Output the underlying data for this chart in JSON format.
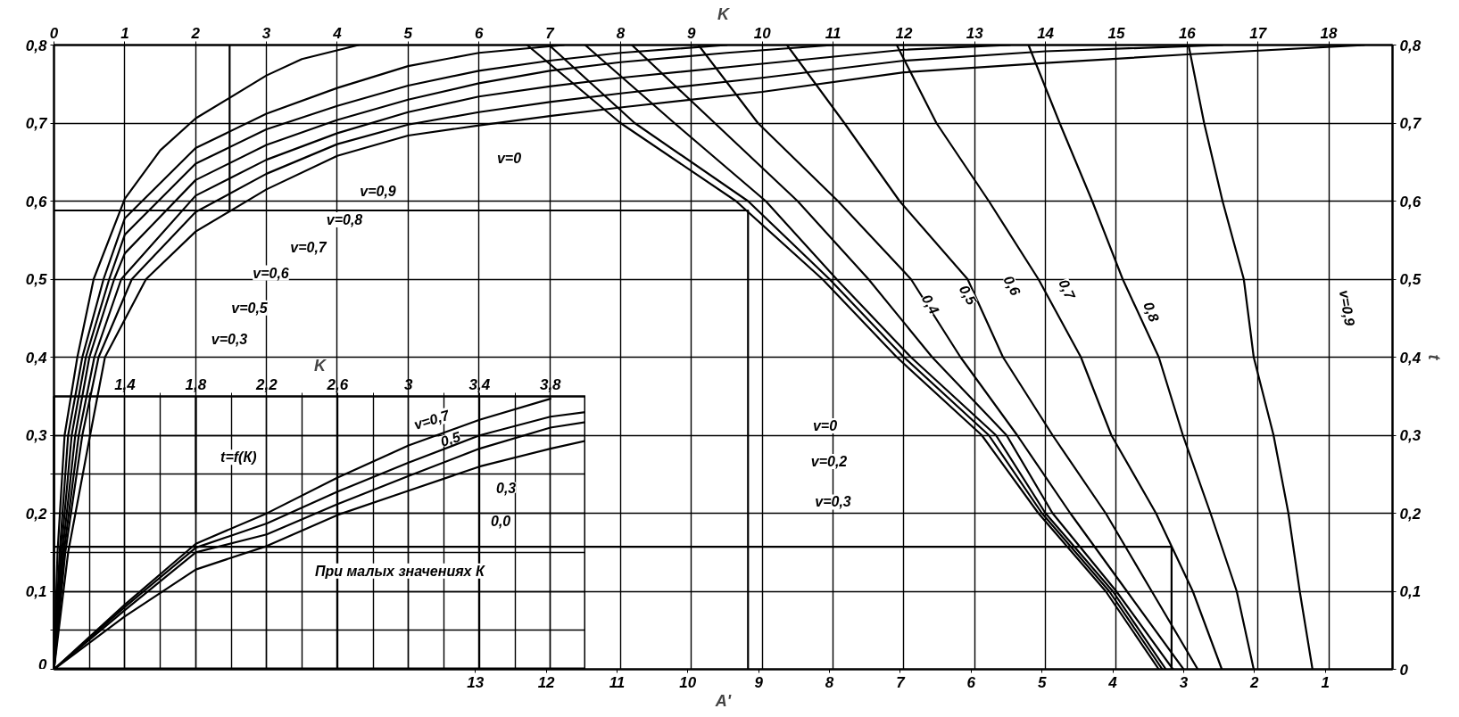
{
  "chart_data": [
    {
      "type": "line",
      "xlabel": "K",
      "x2label": "A'",
      "y2label": "t",
      "xlim": [
        0,
        18.9
      ],
      "xticks": [
        0,
        1,
        2,
        3,
        4,
        5,
        6,
        7,
        8,
        9,
        10,
        11,
        12,
        13,
        14,
        15,
        16,
        17,
        18
      ],
      "x2lim": [
        18.95,
        0.05
      ],
      "x2ticks": [
        1,
        2,
        3,
        4,
        5,
        6,
        7,
        8,
        9,
        10,
        11,
        12,
        13
      ],
      "ylim": [
        0,
        0.8
      ],
      "yticks": [
        {
          "value": 0,
          "label": null
        },
        {
          "value": 0.1,
          "label": null
        },
        {
          "value": 0.2,
          "label": null
        },
        {
          "value": 0.3,
          "label": null
        },
        {
          "value": 0.4,
          "label": "0,4"
        },
        {
          "value": 0.5,
          "label": "0,5"
        },
        {
          "value": 0.6,
          "label": "0,6"
        },
        {
          "value": 0.7,
          "label": "0,7"
        },
        {
          "value": 0.8,
          "label": "0,8"
        }
      ],
      "y2lim": [
        0,
        0.8
      ],
      "y2ticks": [
        {
          "value": 0,
          "label": "0"
        },
        {
          "value": 0.1,
          "label": "0,1"
        },
        {
          "value": 0.2,
          "label": "0,2"
        },
        {
          "value": 0.3,
          "label": "0,3"
        },
        {
          "value": 0.4,
          "label": "0,4"
        },
        {
          "value": 0.5,
          "label": "0,5"
        },
        {
          "value": 0.6,
          "label": "0,6"
        },
        {
          "value": 0.7,
          "label": "0,7"
        },
        {
          "value": 0.8,
          "label": "0,8"
        }
      ],
      "grid": true,
      "series": [
        {
          "color": "#000000",
          "x": [
            0,
            0.05,
            0.15,
            0.33,
            0.56,
            1,
            1.5,
            2,
            3,
            3.5,
            4.3
          ],
          "values": [
            0,
            0.15,
            0.3,
            0.4,
            0.5,
            0.603,
            0.665,
            0.706,
            0.761,
            0.782,
            0.8
          ]
        },
        {
          "color": "#000000",
          "x": [
            0,
            0.08,
            0.2,
            0.4,
            0.7,
            1,
            2,
            3,
            4,
            5,
            6,
            7.2
          ],
          "values": [
            0,
            0.15,
            0.3,
            0.4,
            0.5,
            0.578,
            0.668,
            0.712,
            0.745,
            0.773,
            0.79,
            0.8
          ]
        },
        {
          "color": "#000000",
          "x": [
            0,
            0.1,
            0.25,
            0.45,
            0.78,
            1,
            2,
            3,
            4,
            5,
            6,
            7,
            8,
            9.5
          ],
          "values": [
            0,
            0.15,
            0.3,
            0.4,
            0.5,
            0.557,
            0.648,
            0.692,
            0.722,
            0.748,
            0.767,
            0.78,
            0.79,
            0.8
          ]
        },
        {
          "color": "#000000",
          "x": [
            0,
            0.12,
            0.3,
            0.5,
            0.85,
            1,
            2,
            3,
            4,
            5,
            6,
            7,
            8,
            9.5,
            11
          ],
          "values": [
            0,
            0.15,
            0.3,
            0.4,
            0.5,
            0.533,
            0.627,
            0.672,
            0.704,
            0.73,
            0.751,
            0.767,
            0.778,
            0.79,
            0.8
          ]
        },
        {
          "color": "#000000",
          "x": [
            0,
            0.14,
            0.35,
            0.57,
            0.95,
            2,
            3,
            4,
            5,
            6,
            7,
            8,
            10,
            12,
            13.5
          ],
          "values": [
            0,
            0.15,
            0.3,
            0.4,
            0.5,
            0.607,
            0.653,
            0.687,
            0.714,
            0.734,
            0.747,
            0.758,
            0.776,
            0.794,
            0.8
          ]
        },
        {
          "color": "#000000",
          "x": [
            0,
            0.16,
            0.4,
            0.63,
            1.1,
            2,
            3,
            4,
            5,
            6,
            7,
            8,
            10,
            12,
            14,
            16.5
          ],
          "values": [
            0,
            0.15,
            0.3,
            0.4,
            0.5,
            0.586,
            0.635,
            0.673,
            0.698,
            0.714,
            0.727,
            0.738,
            0.758,
            0.78,
            0.792,
            0.8
          ]
        },
        {
          "color": "#000000",
          "x": [
            0,
            0.2,
            0.51,
            0.72,
            1.3,
            2,
            3,
            4,
            5,
            6,
            7,
            8,
            10,
            12,
            14,
            16,
            18.5
          ],
          "values": [
            0,
            0.15,
            0.3,
            0.4,
            0.5,
            0.561,
            0.615,
            0.658,
            0.684,
            0.697,
            0.709,
            0.72,
            0.74,
            0.765,
            0.777,
            0.788,
            0.8
          ]
        },
        {
          "color": "#000000",
          "x": [
            6.68,
            8.0,
            9.63,
            10.85,
            11.9,
            13.1,
            13.9,
            14.85,
            15.6
          ],
          "values": [
            0.8,
            0.7,
            0.6,
            0.5,
            0.4,
            0.3,
            0.2,
            0.1,
            0
          ]
        },
        {
          "color": "#000000",
          "x": [
            6.99,
            8.2,
            9.8,
            10.95,
            12.0,
            13.2,
            13.95,
            14.9,
            15.65
          ],
          "values": [
            0.8,
            0.7,
            0.6,
            0.5,
            0.4,
            0.3,
            0.2,
            0.1,
            0
          ]
        },
        {
          "color": "#000000",
          "x": [
            7.5,
            8.76,
            10.05,
            11.05,
            12.1,
            13.3,
            14.0,
            14.95,
            15.7
          ],
          "values": [
            0.8,
            0.7,
            0.6,
            0.5,
            0.4,
            0.3,
            0.2,
            0.1,
            0
          ]
        },
        {
          "color": "#000000",
          "x": [
            8.16,
            9.33,
            10.5,
            11.5,
            12.4,
            13.45,
            14.1,
            15.0,
            15.8
          ],
          "values": [
            0.8,
            0.7,
            0.6,
            0.5,
            0.4,
            0.3,
            0.2,
            0.1,
            0
          ]
        },
        {
          "color": "#000000",
          "x": [
            9.1,
            9.94,
            11.07,
            12.1,
            12.8,
            13.6,
            14.35,
            15.15,
            15.95
          ],
          "values": [
            0.8,
            0.7,
            0.6,
            0.5,
            0.4,
            0.3,
            0.2,
            0.1,
            0
          ]
        },
        {
          "color": "#000000",
          "x": [
            10.35,
            11.16,
            11.94,
            12.9,
            13.4,
            14.1,
            14.85,
            15.5,
            16.15
          ],
          "values": [
            0.8,
            0.7,
            0.6,
            0.5,
            0.4,
            0.3,
            0.2,
            0.1,
            0
          ]
        },
        {
          "color": "#000000",
          "x": [
            11.9,
            12.46,
            13.2,
            13.9,
            14.5,
            14.93,
            15.56,
            16.08,
            16.49
          ],
          "values": [
            0.8,
            0.7,
            0.6,
            0.5,
            0.4,
            0.3,
            0.2,
            0.1,
            0
          ]
        },
        {
          "color": "#000000",
          "x": [
            13.76,
            14.2,
            14.66,
            15.09,
            15.6,
            15.94,
            16.33,
            16.7,
            16.94
          ],
          "values": [
            0.8,
            0.7,
            0.6,
            0.5,
            0.4,
            0.3,
            0.2,
            0.1,
            0
          ]
        },
        {
          "color": "#000000",
          "x": [
            16.02,
            16.24,
            16.5,
            16.8,
            16.94,
            17.22,
            17.43,
            17.59,
            17.77
          ],
          "values": [
            0.8,
            0.7,
            0.6,
            0.5,
            0.4,
            0.3,
            0.2,
            0.1,
            0
          ]
        },
        {
          "color": "#000000",
          "x": [
            0,
            9.8,
            9.8
          ],
          "values": [
            0.588,
            0.588,
            0
          ]
        },
        {
          "color": "#000000",
          "x": [
            0,
            15.78,
            15.78
          ],
          "values": [
            0.157,
            0.157,
            0
          ]
        },
        {
          "color": "#000000",
          "x": [
            2.48,
            2.48
          ],
          "values": [
            0.8,
            0.588
          ]
        }
      ],
      "annotations": [
        "v=0,9",
        "v=0,8",
        "v=0,7",
        "v=0,6",
        "v=0,5",
        "v=0,3",
        "v=0",
        "v=0",
        "v=0,2",
        "v=0,3",
        "0,4",
        "0,5",
        "0,6",
        "0,7",
        "0,8",
        "v=0,9"
      ]
    },
    {
      "type": "line",
      "xlabel": "K",
      "xlim": [
        1.0,
        4.0
      ],
      "xticks": [
        {
          "value": 1.2,
          "label": null
        },
        {
          "value": 1.4,
          "label": "1,4"
        },
        {
          "value": 1.6,
          "label": null
        },
        {
          "value": 1.8,
          "label": "1,8"
        },
        {
          "value": 2.0,
          "label": null
        },
        {
          "value": 2.2,
          "label": "2,2"
        },
        {
          "value": 2.4,
          "label": null
        },
        {
          "value": 2.6,
          "label": "2,6"
        },
        {
          "value": 2.8,
          "label": null
        },
        {
          "value": 3,
          "label": "3"
        },
        {
          "value": 3.2,
          "label": null
        },
        {
          "value": 3.4,
          "label": "3,4"
        },
        {
          "value": 3.6,
          "label": null
        },
        {
          "value": 3.8,
          "label": "3,8"
        }
      ],
      "ylim": [
        0,
        0.35
      ],
      "yticks": [
        {
          "value": 0,
          "label": "0"
        },
        {
          "value": 0.05,
          "label": null
        },
        {
          "value": 0.1,
          "label": "0,1"
        },
        {
          "value": 0.15,
          "label": null
        },
        {
          "value": 0.2,
          "label": "0,2"
        },
        {
          "value": 0.25,
          "label": null
        },
        {
          "value": 0.3,
          "label": "0,3"
        }
      ],
      "grid": true,
      "series": [
        {
          "color": "#000000",
          "x": [
            1.0,
            1.4,
            1.8,
            2.2,
            2.6,
            3.0,
            3.4,
            3.8
          ],
          "values": [
            0,
            0.083,
            0.161,
            0.2,
            0.246,
            0.287,
            0.32,
            0.347
          ]
        },
        {
          "color": "#000000",
          "x": [
            1.0,
            1.4,
            1.8,
            2.2,
            2.6,
            3.0,
            3.4,
            3.8,
            4.0
          ],
          "values": [
            0,
            0.08,
            0.156,
            0.187,
            0.228,
            0.265,
            0.3,
            0.324,
            0.33
          ]
        },
        {
          "color": "#000000",
          "x": [
            1.0,
            1.4,
            1.8,
            2.2,
            2.6,
            3.0,
            3.4,
            3.8,
            4.0
          ],
          "values": [
            0,
            0.076,
            0.15,
            0.173,
            0.212,
            0.248,
            0.283,
            0.31,
            0.317
          ]
        },
        {
          "color": "#000000",
          "x": [
            1.0,
            1.4,
            1.8,
            2.2,
            2.6,
            3.0,
            3.4,
            3.8,
            4.0
          ],
          "values": [
            0,
            0.068,
            0.128,
            0.158,
            0.198,
            0.229,
            0.26,
            0.283,
            0.293
          ]
        },
        {
          "color": "#000000",
          "x": [
            1.8,
            1.8
          ],
          "values": [
            0.35,
            0.2
          ]
        }
      ],
      "annotations": [
        "v=0,7",
        "0,5",
        "0,3",
        "0,0",
        "t=f(К)",
        "При малых значениях К"
      ]
    }
  ]
}
